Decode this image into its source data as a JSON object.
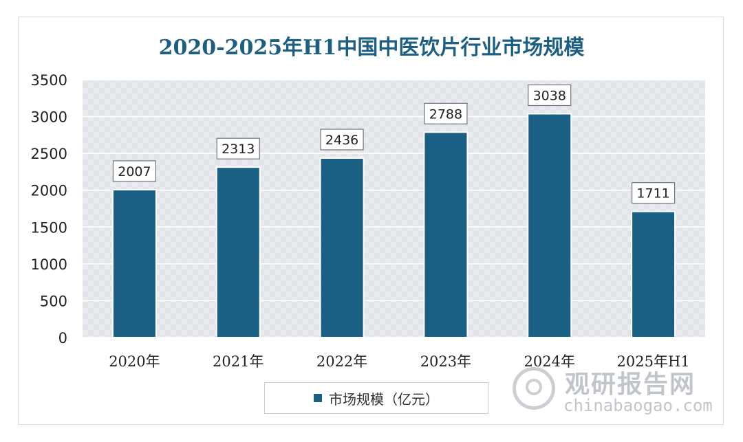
{
  "chart_data": {
    "type": "bar",
    "title": "2020-2025年H1中国中医饮片行业市场规模",
    "categories": [
      "2020年",
      "2021年",
      "2022年",
      "2023年",
      "2024年",
      "2025年H1"
    ],
    "series": [
      {
        "name": "市场规模（亿元）",
        "values": [
          2007,
          2313,
          2436,
          2788,
          3038,
          1711
        ]
      }
    ],
    "data_labels": [
      "2007",
      "2313",
      "2436",
      "2788",
      "3038",
      "1711"
    ],
    "y_ticks": [
      "0",
      "500",
      "1000",
      "1500",
      "2000",
      "2500",
      "3000",
      "3500"
    ],
    "ylim": [
      0,
      3500
    ],
    "grid": true,
    "legend_position": "bottom",
    "bar_color": "#1a5f84",
    "title_color": "#1c5f82"
  },
  "watermark": {
    "cn": "观研报告网",
    "en": "chinabaogao.com",
    "icon": "logo-icon"
  }
}
